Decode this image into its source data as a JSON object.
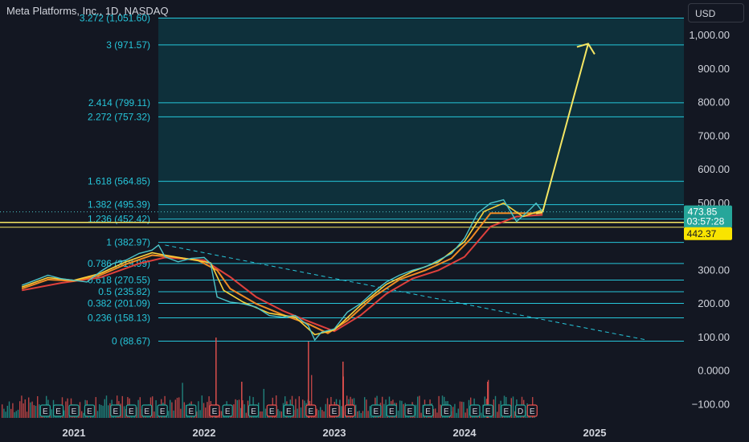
{
  "header": {
    "title": "Meta Platforms, Inc., 1D, NASDAQ",
    "currency": "USD"
  },
  "colors": {
    "background": "#131722",
    "fib_line": "#26c6da",
    "fib_fill": "#0d3a44",
    "yellow": "#f5e663",
    "ema_fast": "#f9cf3a",
    "ema_mid": "#f08a24",
    "ema_slow": "#e0403c",
    "price_line": "#4dc5c9",
    "price_badge": "#26a69a",
    "marker_badge": "#f9e400",
    "axis_text": "#d1d4dc",
    "vol_up": "#26a69a",
    "vol_down": "#ef5350"
  },
  "chart_data": {
    "type": "line",
    "title": "Meta Platforms, Inc., 1D, NASDAQ",
    "y_axis": {
      "ticks": [
        1000,
        900,
        800,
        700,
        600,
        500,
        300,
        200,
        100,
        0,
        -100
      ],
      "tick_labels": [
        "1,000.00",
        "900.00",
        "800.00",
        "700.00",
        "600.00",
        "500.00",
        "300.00",
        "200.00",
        "100.00",
        "0.0000",
        "−100.00"
      ]
    },
    "x_axis": {
      "ticks": [
        2021,
        2022,
        2023,
        2024,
        2025
      ],
      "tick_labels": [
        "2021",
        "2022",
        "2023",
        "2024",
        "2025"
      ]
    },
    "fib_levels": [
      {
        "ratio": "0",
        "price": 88.67,
        "label": "0 (88.67)"
      },
      {
        "ratio": "0.236",
        "price": 158.13,
        "label": "0.236 (158.13)"
      },
      {
        "ratio": "0.382",
        "price": 201.09,
        "label": "0.382 (201.09)"
      },
      {
        "ratio": "0.5",
        "price": 235.82,
        "label": "0.5 (235.82)"
      },
      {
        "ratio": "0.618",
        "price": 270.55,
        "label": "0.618 (270.55)"
      },
      {
        "ratio": "0.786",
        "price": 319.99,
        "label": "0.786 (319.99)"
      },
      {
        "ratio": "1",
        "price": 382.97,
        "label": "1 (382.97)"
      },
      {
        "ratio": "1.236",
        "price": 452.42,
        "label": "1.236 (452.42)"
      },
      {
        "ratio": "1.382",
        "price": 495.39,
        "label": "1.382 (495.39)"
      },
      {
        "ratio": "1.618",
        "price": 564.85,
        "label": "1.618 (564.85)"
      },
      {
        "ratio": "2.272",
        "price": 757.32,
        "label": "2.272 (757.32)"
      },
      {
        "ratio": "2.414",
        "price": 799.11,
        "label": "2.414 (799.11)"
      },
      {
        "ratio": "3",
        "price": 971.57,
        "label": "3 (971.57)"
      },
      {
        "ratio": "3.272",
        "price": 1051.6,
        "label": "3.272 (1,051.60)"
      }
    ],
    "current_price": {
      "value": 473.85,
      "label": "473.85",
      "countdown": "03:57:28"
    },
    "horizontal_marker": {
      "value": 442.37,
      "label": "442.37"
    },
    "price_series": {
      "name": "",
      "points": [
        [
          2020.6,
          255
        ],
        [
          2020.7,
          270
        ],
        [
          2020.8,
          285
        ],
        [
          2020.9,
          275
        ],
        [
          2021.0,
          270
        ],
        [
          2021.1,
          265
        ],
        [
          2021.2,
          295
        ],
        [
          2021.3,
          320
        ],
        [
          2021.4,
          330
        ],
        [
          2021.5,
          350
        ],
        [
          2021.6,
          360
        ],
        [
          2021.65,
          375
        ],
        [
          2021.7,
          340
        ],
        [
          2021.8,
          325
        ],
        [
          2021.9,
          335
        ],
        [
          2022.0,
          338
        ],
        [
          2022.05,
          320
        ],
        [
          2022.1,
          220
        ],
        [
          2022.2,
          205
        ],
        [
          2022.3,
          200
        ],
        [
          2022.4,
          190
        ],
        [
          2022.5,
          165
        ],
        [
          2022.6,
          160
        ],
        [
          2022.7,
          165
        ],
        [
          2022.8,
          135
        ],
        [
          2022.85,
          92
        ],
        [
          2022.9,
          115
        ],
        [
          2023.0,
          125
        ],
        [
          2023.1,
          175
        ],
        [
          2023.2,
          200
        ],
        [
          2023.3,
          235
        ],
        [
          2023.4,
          265
        ],
        [
          2023.5,
          285
        ],
        [
          2023.6,
          300
        ],
        [
          2023.7,
          310
        ],
        [
          2023.8,
          330
        ],
        [
          2023.9,
          350
        ],
        [
          2024.0,
          395
        ],
        [
          2024.1,
          470
        ],
        [
          2024.2,
          500
        ],
        [
          2024.3,
          510
        ],
        [
          2024.4,
          445
        ],
        [
          2024.5,
          480
        ],
        [
          2024.55,
          500
        ],
        [
          2024.6,
          474
        ]
      ]
    },
    "ema_fast": {
      "name": "",
      "points": [
        [
          2020.6,
          250
        ],
        [
          2020.8,
          278
        ],
        [
          2021.0,
          270
        ],
        [
          2021.2,
          290
        ],
        [
          2021.4,
          325
        ],
        [
          2021.6,
          352
        ],
        [
          2021.7,
          345
        ],
        [
          2021.9,
          332
        ],
        [
          2022.05,
          322
        ],
        [
          2022.15,
          240
        ],
        [
          2022.3,
          205
        ],
        [
          2022.5,
          172
        ],
        [
          2022.7,
          160
        ],
        [
          2022.85,
          108
        ],
        [
          2023.0,
          122
        ],
        [
          2023.2,
          195
        ],
        [
          2023.4,
          258
        ],
        [
          2023.6,
          296
        ],
        [
          2023.8,
          325
        ],
        [
          2024.0,
          385
        ],
        [
          2024.15,
          475
        ],
        [
          2024.3,
          500
        ],
        [
          2024.45,
          460
        ],
        [
          2024.6,
          480
        ]
      ]
    },
    "ema_mid": {
      "name": "",
      "points": [
        [
          2020.6,
          245
        ],
        [
          2020.8,
          272
        ],
        [
          2021.0,
          268
        ],
        [
          2021.2,
          285
        ],
        [
          2021.4,
          318
        ],
        [
          2021.6,
          345
        ],
        [
          2021.75,
          340
        ],
        [
          2021.95,
          330
        ],
        [
          2022.1,
          300
        ],
        [
          2022.2,
          245
        ],
        [
          2022.4,
          200
        ],
        [
          2022.6,
          168
        ],
        [
          2022.8,
          140
        ],
        [
          2022.95,
          112
        ],
        [
          2023.1,
          150
        ],
        [
          2023.3,
          220
        ],
        [
          2023.5,
          272
        ],
        [
          2023.7,
          300
        ],
        [
          2023.9,
          335
        ],
        [
          2024.05,
          395
        ],
        [
          2024.2,
          470
        ],
        [
          2024.4,
          470
        ],
        [
          2024.6,
          470
        ]
      ]
    },
    "ema_slow": {
      "name": "",
      "points": [
        [
          2020.6,
          240
        ],
        [
          2020.9,
          262
        ],
        [
          2021.2,
          278
        ],
        [
          2021.5,
          320
        ],
        [
          2021.7,
          338
        ],
        [
          2022.0,
          330
        ],
        [
          2022.2,
          280
        ],
        [
          2022.4,
          220
        ],
        [
          2022.6,
          180
        ],
        [
          2022.8,
          148
        ],
        [
          2023.0,
          118
        ],
        [
          2023.2,
          165
        ],
        [
          2023.4,
          230
        ],
        [
          2023.6,
          275
        ],
        [
          2023.8,
          300
        ],
        [
          2024.0,
          340
        ],
        [
          2024.2,
          430
        ],
        [
          2024.4,
          460
        ],
        [
          2024.6,
          465
        ]
      ]
    },
    "projection_arrow": {
      "from": [
        2024.6,
        474
      ],
      "to": [
        2024.95,
        975
      ]
    },
    "trendline_dashed": {
      "from": [
        2021.7,
        375
      ],
      "to": [
        2025.4,
        92
      ]
    },
    "earnings_markers": [
      {
        "x": 2020.78,
        "label": "E",
        "type": "up"
      },
      {
        "x": 2020.88,
        "label": "E",
        "type": "up"
      },
      {
        "x": 2021.0,
        "label": "E",
        "type": "up"
      },
      {
        "x": 2021.12,
        "label": "E",
        "type": "up"
      },
      {
        "x": 2021.32,
        "label": "E",
        "type": "up"
      },
      {
        "x": 2021.44,
        "label": "E",
        "type": "up"
      },
      {
        "x": 2021.56,
        "label": "E",
        "type": "up"
      },
      {
        "x": 2021.68,
        "label": "E",
        "type": "up"
      },
      {
        "x": 2021.9,
        "label": "E",
        "type": "up"
      },
      {
        "x": 2022.08,
        "label": "E",
        "type": "down"
      },
      {
        "x": 2022.18,
        "label": "E",
        "type": "up"
      },
      {
        "x": 2022.38,
        "label": "E",
        "type": "up"
      },
      {
        "x": 2022.52,
        "label": "E",
        "type": "down"
      },
      {
        "x": 2022.65,
        "label": "E",
        "type": "up"
      },
      {
        "x": 2022.82,
        "label": "E",
        "type": "down"
      },
      {
        "x": 2023.0,
        "label": "E",
        "type": "down"
      },
      {
        "x": 2023.12,
        "label": "E",
        "type": "down"
      },
      {
        "x": 2023.32,
        "label": "E",
        "type": "up"
      },
      {
        "x": 2023.44,
        "label": "E",
        "type": "up"
      },
      {
        "x": 2023.58,
        "label": "E",
        "type": "up"
      },
      {
        "x": 2023.72,
        "label": "E",
        "type": "up"
      },
      {
        "x": 2023.86,
        "label": "E",
        "type": "up"
      },
      {
        "x": 2024.08,
        "label": "E",
        "type": "up"
      },
      {
        "x": 2024.18,
        "label": "E",
        "type": "up"
      },
      {
        "x": 2024.32,
        "label": "E",
        "type": "up"
      },
      {
        "x": 2024.43,
        "label": "D",
        "type": "up"
      },
      {
        "x": 2024.52,
        "label": "E",
        "type": "down"
      }
    ]
  }
}
